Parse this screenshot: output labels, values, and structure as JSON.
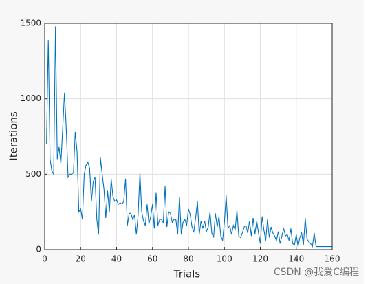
{
  "chart_data": {
    "type": "line",
    "xlabel": "Trials",
    "ylabel": "Iterations",
    "color": "#0072bd",
    "x": [
      1,
      2,
      3,
      4,
      5,
      6,
      7,
      8,
      9,
      10,
      11,
      12,
      13,
      14,
      15,
      16,
      17,
      18,
      19,
      20,
      21,
      22,
      23,
      24,
      25,
      26,
      27,
      28,
      29,
      30,
      31,
      32,
      33,
      34,
      35,
      36,
      37,
      38,
      39,
      40,
      41,
      42,
      43,
      44,
      45,
      46,
      47,
      48,
      49,
      50,
      51,
      52,
      53,
      54,
      55,
      56,
      57,
      58,
      59,
      60,
      61,
      62,
      63,
      64,
      65,
      66,
      67,
      68,
      69,
      70,
      71,
      72,
      73,
      74,
      75,
      76,
      77,
      78,
      79,
      80,
      81,
      82,
      83,
      84,
      85,
      86,
      87,
      88,
      89,
      90,
      91,
      92,
      93,
      94,
      95,
      96,
      97,
      98,
      99,
      100,
      101,
      102,
      103,
      104,
      105,
      106,
      107,
      108,
      109,
      110,
      111,
      112,
      113,
      114,
      115,
      116,
      117,
      118,
      119,
      120,
      121,
      122,
      123,
      124,
      125,
      126,
      127,
      128,
      129,
      130,
      131,
      132,
      133,
      134,
      135,
      136,
      137,
      138,
      139,
      140,
      141,
      142,
      143,
      144,
      145,
      146,
      147,
      148,
      149,
      150,
      151,
      152,
      153,
      154,
      155,
      156,
      157,
      158,
      159,
      160
    ],
    "values": [
      700,
      1390,
      600,
      520,
      500,
      1480,
      600,
      680,
      570,
      800,
      1040,
      800,
      480,
      500,
      500,
      510,
      780,
      650,
      250,
      270,
      200,
      500,
      560,
      580,
      540,
      320,
      450,
      480,
      200,
      100,
      610,
      500,
      400,
      210,
      390,
      250,
      470,
      350,
      320,
      330,
      300,
      310,
      300,
      320,
      470,
      160,
      240,
      240,
      200,
      230,
      100,
      230,
      510,
      250,
      190,
      160,
      300,
      170,
      220,
      300,
      140,
      380,
      160,
      200,
      200,
      180,
      420,
      150,
      250,
      240,
      180,
      200,
      200,
      100,
      350,
      100,
      180,
      200,
      160,
      270,
      230,
      150,
      120,
      210,
      320,
      100,
      190,
      140,
      190,
      120,
      150,
      250,
      110,
      80,
      240,
      150,
      220,
      90,
      60,
      180,
      360,
      140,
      160,
      100,
      160,
      130,
      260,
      90,
      80,
      110,
      150,
      160,
      110,
      190,
      90,
      210,
      100,
      190,
      110,
      40,
      220,
      130,
      60,
      200,
      80,
      150,
      110,
      90,
      60,
      120,
      40,
      90,
      140,
      90,
      100,
      60,
      140,
      40,
      30,
      100,
      20,
      80,
      110,
      30,
      210,
      70,
      50,
      40,
      20,
      110,
      20,
      20,
      20,
      20,
      20,
      20,
      20,
      20,
      20,
      20
    ],
    "xlim": [
      0,
      160
    ],
    "xticks": [
      0,
      20,
      40,
      60,
      80,
      100,
      120,
      140,
      160
    ],
    "ylim": [
      0,
      1500
    ],
    "yticks": [
      0,
      500,
      1000,
      1500
    ],
    "grid": true,
    "watermark": "CSDN @我爱C编程"
  }
}
